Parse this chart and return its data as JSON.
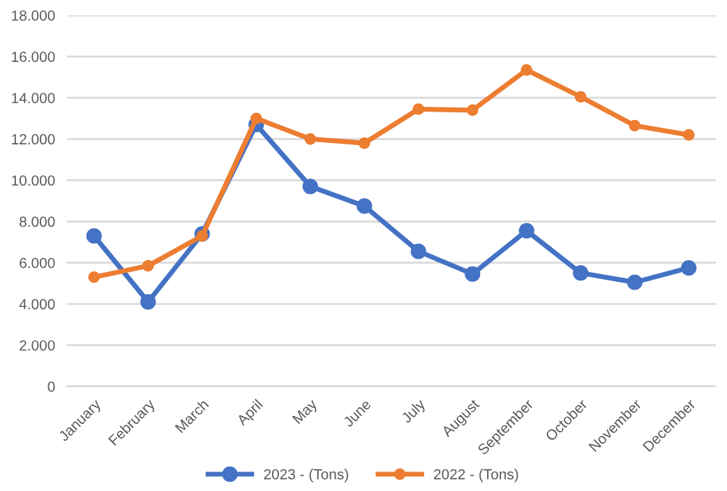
{
  "chart_data": {
    "type": "line",
    "categories": [
      "January",
      "February",
      "March",
      "April",
      "May",
      "June",
      "July",
      "August",
      "September",
      "October",
      "November",
      "December"
    ],
    "series": [
      {
        "name": "2023 - (Tons)",
        "color": "#4472c4",
        "values": [
          7300,
          4100,
          7400,
          12700,
          9700,
          8750,
          6550,
          5450,
          7550,
          5500,
          5050,
          5750
        ]
      },
      {
        "name": "2022 - (Tons)",
        "color": "#ed7d31",
        "values": [
          5300,
          5850,
          7300,
          13000,
          12000,
          11800,
          13450,
          13400,
          15350,
          14050,
          12650,
          12200
        ]
      }
    ],
    "ylim": [
      0,
      18000
    ],
    "yticks": [
      0,
      {
        "value": 2000,
        "label": "2.000"
      },
      {
        "value": 4000,
        "label": "4.000"
      },
      {
        "value": 6000,
        "label": "6.000"
      },
      {
        "value": 8000,
        "label": "8.000"
      },
      {
        "value": 10000,
        "label": "10.000"
      },
      {
        "value": 12000,
        "label": "12.000"
      },
      {
        "value": 14000,
        "label": "14.000"
      },
      {
        "value": 16000,
        "label": "16.000"
      },
      {
        "value": 18000,
        "label": "18.000"
      }
    ],
    "grid": "y",
    "legend": "bottom",
    "marker": "circle",
    "line_style": "solid"
  }
}
